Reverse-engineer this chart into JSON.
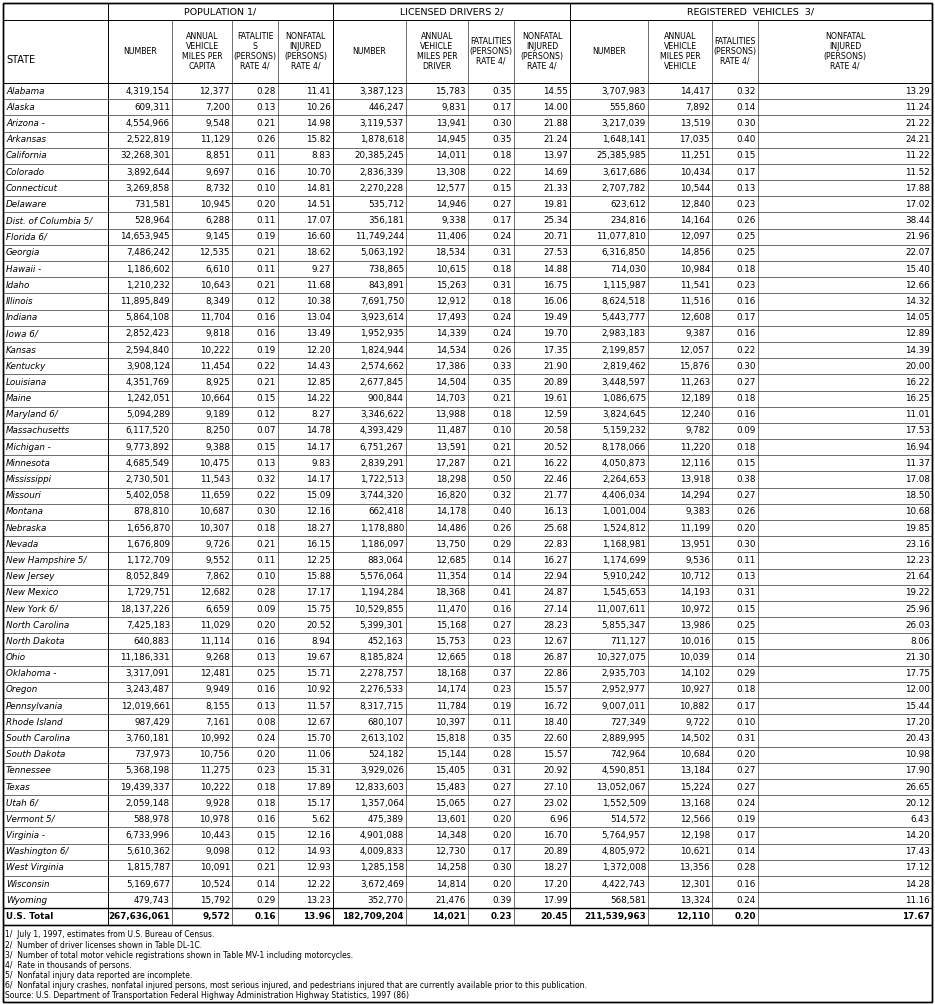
{
  "col_headers_top": [
    "POPULATION 1/",
    "LICENSED DRIVERS 2/",
    "REGISTERED  VEHICLES  3/"
  ],
  "col_headers_sub": [
    "STATE",
    "NUMBER",
    "ANNUAL\nVEHICLE\nMILES PER\nCAPITA",
    "FATALITIE\nS\n(PERSONS)\nRATE 4/",
    "NONFATAL\nINJURED\n(PERSONS)\nRATE 4/",
    "NUMBER",
    "ANNUAL\nVEHICLE\nMILES PER\nDRIVER",
    "FATALITIES\n(PERSONS)\nRATE 4/",
    "NONFATAL\nINJURED\n(PERSONS)\nRATE 4/",
    "NUMBER",
    "ANNUAL\nVEHICLE\nMILES PER\nVEHICLE",
    "FATALITIES\n(PERSONS)\nRATE 4/",
    "NONFATAL\nINJURED\n(PERSONS)\nRATE 4/"
  ],
  "rows": [
    [
      "Alabama",
      "4,319,154",
      "12,377",
      "0.28",
      "11.41",
      "3,387,123",
      "15,783",
      "0.35",
      "14.55",
      "3,707,983",
      "14,417",
      "0.32",
      "13.29"
    ],
    [
      "Alaska",
      "609,311",
      "7,200",
      "0.13",
      "10.26",
      "446,247",
      "9,831",
      "0.17",
      "14.00",
      "555,860",
      "7,892",
      "0.14",
      "11.24"
    ],
    [
      "Arizona -",
      "4,554,966",
      "9,548",
      "0.21",
      "14.98",
      "3,119,537",
      "13,941",
      "0.30",
      "21.88",
      "3,217,039",
      "13,519",
      "0.30",
      "21.22"
    ],
    [
      "Arkansas",
      "2,522,819",
      "11,129",
      "0.26",
      "15.82",
      "1,878,618",
      "14,945",
      "0.35",
      "21.24",
      "1,648,141",
      "17,035",
      "0.40",
      "24.21"
    ],
    [
      "California",
      "32,268,301",
      "8,851",
      "0.11",
      "8.83",
      "20,385,245",
      "14,011",
      "0.18",
      "13.97",
      "25,385,985",
      "11,251",
      "0.15",
      "11.22"
    ],
    [
      "Colorado",
      "3,892,644",
      "9,697",
      "0.16",
      "10.70",
      "2,836,339",
      "13,308",
      "0.22",
      "14.69",
      "3,617,686",
      "10,434",
      "0.17",
      "11.52"
    ],
    [
      "Connecticut",
      "3,269,858",
      "8,732",
      "0.10",
      "14.81",
      "2,270,228",
      "12,577",
      "0.15",
      "21.33",
      "2,707,782",
      "10,544",
      "0.13",
      "17.88"
    ],
    [
      "Delaware",
      "731,581",
      "10,945",
      "0.20",
      "14.51",
      "535,712",
      "14,946",
      "0.27",
      "19.81",
      "623,612",
      "12,840",
      "0.23",
      "17.02"
    ],
    [
      "Dist. of Columbia 5/",
      "528,964",
      "6,288",
      "0.11",
      "17.07",
      "356,181",
      "9,338",
      "0.17",
      "25.34",
      "234,816",
      "14,164",
      "0.26",
      "38.44"
    ],
    [
      "Florida 6/",
      "14,653,945",
      "9,145",
      "0.19",
      "16.60",
      "11,749,244",
      "11,406",
      "0.24",
      "20.71",
      "11,077,810",
      "12,097",
      "0.25",
      "21.96"
    ],
    [
      "Georgia",
      "7,486,242",
      "12,535",
      "0.21",
      "18.62",
      "5,063,192",
      "18,534",
      "0.31",
      "27.53",
      "6,316,850",
      "14,856",
      "0.25",
      "22.07"
    ],
    [
      "Hawaii -",
      "1,186,602",
      "6,610",
      "0.11",
      "9.27",
      "738,865",
      "10,615",
      "0.18",
      "14.88",
      "714,030",
      "10,984",
      "0.18",
      "15.40"
    ],
    [
      "Idaho",
      "1,210,232",
      "10,643",
      "0.21",
      "11.68",
      "843,891",
      "15,263",
      "0.31",
      "16.75",
      "1,115,987",
      "11,541",
      "0.23",
      "12.66"
    ],
    [
      "Illinois",
      "11,895,849",
      "8,349",
      "0.12",
      "10.38",
      "7,691,750",
      "12,912",
      "0.18",
      "16.06",
      "8,624,518",
      "11,516",
      "0.16",
      "14.32"
    ],
    [
      "Indiana",
      "5,864,108",
      "11,704",
      "0.16",
      "13.04",
      "3,923,614",
      "17,493",
      "0.24",
      "19.49",
      "5,443,777",
      "12,608",
      "0.17",
      "14.05"
    ],
    [
      "Iowa 6/",
      "2,852,423",
      "9,818",
      "0.16",
      "13.49",
      "1,952,935",
      "14,339",
      "0.24",
      "19.70",
      "2,983,183",
      "9,387",
      "0.16",
      "12.89"
    ],
    [
      "Kansas",
      "2,594,840",
      "10,222",
      "0.19",
      "12.20",
      "1,824,944",
      "14,534",
      "0.26",
      "17.35",
      "2,199,857",
      "12,057",
      "0.22",
      "14.39"
    ],
    [
      "Kentucky",
      "3,908,124",
      "11,454",
      "0.22",
      "14.43",
      "2,574,662",
      "17,386",
      "0.33",
      "21.90",
      "2,819,462",
      "15,876",
      "0.30",
      "20.00"
    ],
    [
      "Louisiana",
      "4,351,769",
      "8,925",
      "0.21",
      "12.85",
      "2,677,845",
      "14,504",
      "0.35",
      "20.89",
      "3,448,597",
      "11,263",
      "0.27",
      "16.22"
    ],
    [
      "Maine",
      "1,242,051",
      "10,664",
      "0.15",
      "14.22",
      "900,844",
      "14,703",
      "0.21",
      "19.61",
      "1,086,675",
      "12,189",
      "0.18",
      "16.25"
    ],
    [
      "Maryland 6/",
      "5,094,289",
      "9,189",
      "0.12",
      "8.27",
      "3,346,622",
      "13,988",
      "0.18",
      "12.59",
      "3,824,645",
      "12,240",
      "0.16",
      "11.01"
    ],
    [
      "Massachusetts",
      "6,117,520",
      "8,250",
      "0.07",
      "14.78",
      "4,393,429",
      "11,487",
      "0.10",
      "20.58",
      "5,159,232",
      "9,782",
      "0.09",
      "17.53"
    ],
    [
      "Michigan -",
      "9,773,892",
      "9,388",
      "0.15",
      "14.17",
      "6,751,267",
      "13,591",
      "0.21",
      "20.52",
      "8,178,066",
      "11,220",
      "0.18",
      "16.94"
    ],
    [
      "Minnesota",
      "4,685,549",
      "10,475",
      "0.13",
      "9.83",
      "2,839,291",
      "17,287",
      "0.21",
      "16.22",
      "4,050,873",
      "12,116",
      "0.15",
      "11.37"
    ],
    [
      "Mississippi",
      "2,730,501",
      "11,543",
      "0.32",
      "14.17",
      "1,722,513",
      "18,298",
      "0.50",
      "22.46",
      "2,264,653",
      "13,918",
      "0.38",
      "17.08"
    ],
    [
      "Missouri",
      "5,402,058",
      "11,659",
      "0.22",
      "15.09",
      "3,744,320",
      "16,820",
      "0.32",
      "21.77",
      "4,406,034",
      "14,294",
      "0.27",
      "18.50"
    ],
    [
      "Montana",
      "878,810",
      "10,687",
      "0.30",
      "12.16",
      "662,418",
      "14,178",
      "0.40",
      "16.13",
      "1,001,004",
      "9,383",
      "0.26",
      "10.68"
    ],
    [
      "Nebraska",
      "1,656,870",
      "10,307",
      "0.18",
      "18.27",
      "1,178,880",
      "14,486",
      "0.26",
      "25.68",
      "1,524,812",
      "11,199",
      "0.20",
      "19.85"
    ],
    [
      "Nevada",
      "1,676,809",
      "9,726",
      "0.21",
      "16.15",
      "1,186,097",
      "13,750",
      "0.29",
      "22.83",
      "1,168,981",
      "13,951",
      "0.30",
      "23.16"
    ],
    [
      "New Hampshire 5/",
      "1,172,709",
      "9,552",
      "0.11",
      "12.25",
      "883,064",
      "12,685",
      "0.14",
      "16.27",
      "1,174,699",
      "9,536",
      "0.11",
      "12.23"
    ],
    [
      "New Jersey",
      "8,052,849",
      "7,862",
      "0.10",
      "15.88",
      "5,576,064",
      "11,354",
      "0.14",
      "22.94",
      "5,910,242",
      "10,712",
      "0.13",
      "21.64"
    ],
    [
      "New Mexico",
      "1,729,751",
      "12,682",
      "0.28",
      "17.17",
      "1,194,284",
      "18,368",
      "0.41",
      "24.87",
      "1,545,653",
      "14,193",
      "0.31",
      "19.22"
    ],
    [
      "New York 6/",
      "18,137,226",
      "6,659",
      "0.09",
      "15.75",
      "10,529,855",
      "11,470",
      "0.16",
      "27.14",
      "11,007,611",
      "10,972",
      "0.15",
      "25.96"
    ],
    [
      "North Carolina",
      "7,425,183",
      "11,029",
      "0.20",
      "20.52",
      "5,399,301",
      "15,168",
      "0.27",
      "28.23",
      "5,855,347",
      "13,986",
      "0.25",
      "26.03"
    ],
    [
      "North Dakota",
      "640,883",
      "11,114",
      "0.16",
      "8.94",
      "452,163",
      "15,753",
      "0.23",
      "12.67",
      "711,127",
      "10,016",
      "0.15",
      "8.06"
    ],
    [
      "Ohio",
      "11,186,331",
      "9,268",
      "0.13",
      "19.67",
      "8,185,824",
      "12,665",
      "0.18",
      "26.87",
      "10,327,075",
      "10,039",
      "0.14",
      "21.30"
    ],
    [
      "Oklahoma -",
      "3,317,091",
      "12,481",
      "0.25",
      "15.71",
      "2,278,757",
      "18,168",
      "0.37",
      "22.86",
      "2,935,703",
      "14,102",
      "0.29",
      "17.75"
    ],
    [
      "Oregon",
      "3,243,487",
      "9,949",
      "0.16",
      "10.92",
      "2,276,533",
      "14,174",
      "0.23",
      "15.57",
      "2,952,977",
      "10,927",
      "0.18",
      "12.00"
    ],
    [
      "Pennsylvania",
      "12,019,661",
      "8,155",
      "0.13",
      "11.57",
      "8,317,715",
      "11,784",
      "0.19",
      "16.72",
      "9,007,011",
      "10,882",
      "0.17",
      "15.44"
    ],
    [
      "Rhode Island",
      "987,429",
      "7,161",
      "0.08",
      "12.67",
      "680,107",
      "10,397",
      "0.11",
      "18.40",
      "727,349",
      "9,722",
      "0.10",
      "17.20"
    ],
    [
      "South Carolina",
      "3,760,181",
      "10,992",
      "0.24",
      "15.70",
      "2,613,102",
      "15,818",
      "0.35",
      "22.60",
      "2,889,995",
      "14,502",
      "0.31",
      "20.43"
    ],
    [
      "South Dakota",
      "737,973",
      "10,756",
      "0.20",
      "11.06",
      "524,182",
      "15,144",
      "0.28",
      "15.57",
      "742,964",
      "10,684",
      "0.20",
      "10.98"
    ],
    [
      "Tennessee",
      "5,368,198",
      "11,275",
      "0.23",
      "15.31",
      "3,929,026",
      "15,405",
      "0.31",
      "20.92",
      "4,590,851",
      "13,184",
      "0.27",
      "17.90"
    ],
    [
      "Texas",
      "19,439,337",
      "10,222",
      "0.18",
      "17.89",
      "12,833,603",
      "15,483",
      "0.27",
      "27.10",
      "13,052,067",
      "15,224",
      "0.27",
      "26.65"
    ],
    [
      "Utah 6/",
      "2,059,148",
      "9,928",
      "0.18",
      "15.17",
      "1,357,064",
      "15,065",
      "0.27",
      "23.02",
      "1,552,509",
      "13,168",
      "0.24",
      "20.12"
    ],
    [
      "Vermont 5/",
      "588,978",
      "10,978",
      "0.16",
      "5.62",
      "475,389",
      "13,601",
      "0.20",
      "6.96",
      "514,572",
      "12,566",
      "0.19",
      "6.43"
    ],
    [
      "Virginia -",
      "6,733,996",
      "10,443",
      "0.15",
      "12.16",
      "4,901,088",
      "14,348",
      "0.20",
      "16.70",
      "5,764,957",
      "12,198",
      "0.17",
      "14.20"
    ],
    [
      "Washington 6/",
      "5,610,362",
      "9,098",
      "0.12",
      "14.93",
      "4,009,833",
      "12,730",
      "0.17",
      "20.89",
      "4,805,972",
      "10,621",
      "0.14",
      "17.43"
    ],
    [
      "West Virginia",
      "1,815,787",
      "10,091",
      "0.21",
      "12.93",
      "1,285,158",
      "14,258",
      "0.30",
      "18.27",
      "1,372,008",
      "13,356",
      "0.28",
      "17.12"
    ],
    [
      "Wisconsin",
      "5,169,677",
      "10,524",
      "0.14",
      "12.22",
      "3,672,469",
      "14,814",
      "0.20",
      "17.20",
      "4,422,743",
      "12,301",
      "0.16",
      "14.28"
    ],
    [
      "Wyoming",
      "479,743",
      "15,792",
      "0.29",
      "13.23",
      "352,770",
      "21,476",
      "0.39",
      "17.99",
      "568,581",
      "13,324",
      "0.24",
      "11.16"
    ],
    [
      "U.S. Total",
      "267,636,061",
      "9,572",
      "0.16",
      "13.96",
      "182,709,204",
      "14,021",
      "0.23",
      "20.45",
      "211,539,963",
      "12,110",
      "0.20",
      "17.67"
    ]
  ],
  "footnotes": [
    "1/  July 1, 1997, estimates from U.S. Bureau of Census.",
    "2/  Number of driver licenses shown in Table DL-1C.",
    "3/  Number of total motor vehicle registrations shown in Table MV-1 including motorcycles.",
    "4/  Rate in thousands of persons.",
    "5/  Nonfatal injury data reported are incomplete.",
    "6/  Nonfatal injury crashes, nonfatal injured persons, most serious injured, and pedestrians injured that are currently available prior to this publication.",
    "Source: U.S. Department of Transportation Federal Highway Administration Highway Statistics, 1997 (86)"
  ]
}
